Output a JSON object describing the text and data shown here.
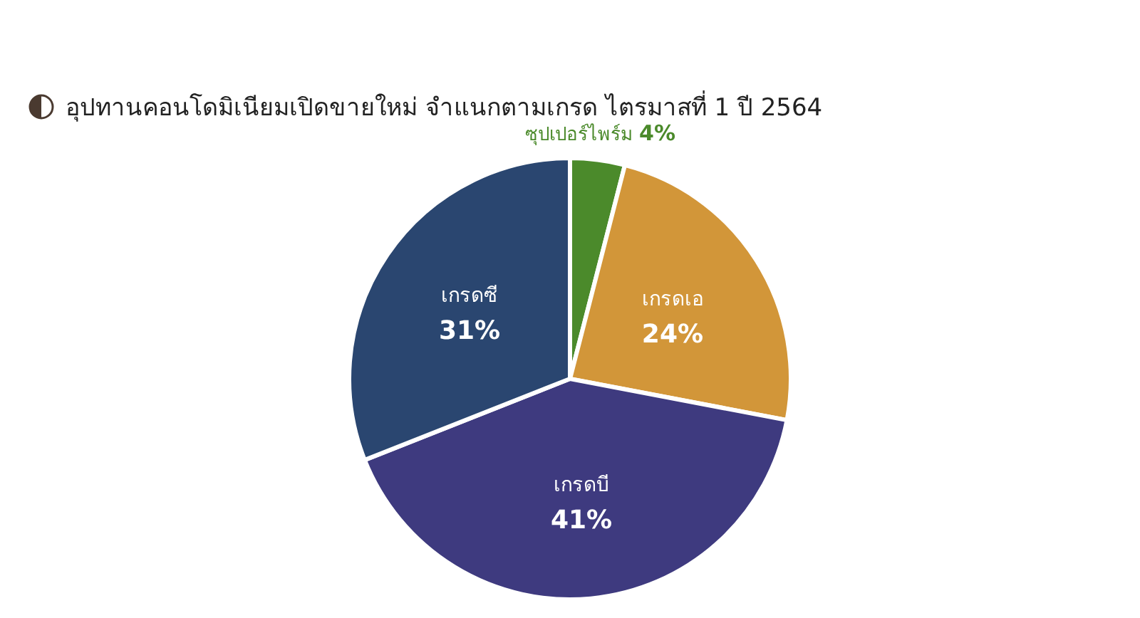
{
  "chart_data": {
    "type": "pie",
    "title": "อุปทานคอนโดมิเนียมเปิดขายใหม่ จำแนกตามเกรด ไตรมาสที่ 1 ปี 2564",
    "categories": [
      "ซุปเปอร์ไพร์ม",
      "เกรดเอ",
      "เกรดบี",
      "เกรดซี"
    ],
    "values": [
      4,
      24,
      41,
      31
    ],
    "value_labels": [
      "4%",
      "24%",
      "41%",
      "31%"
    ],
    "colors": [
      "#4b8a2b",
      "#d29639",
      "#3e3a7f",
      "#2a4670"
    ]
  }
}
